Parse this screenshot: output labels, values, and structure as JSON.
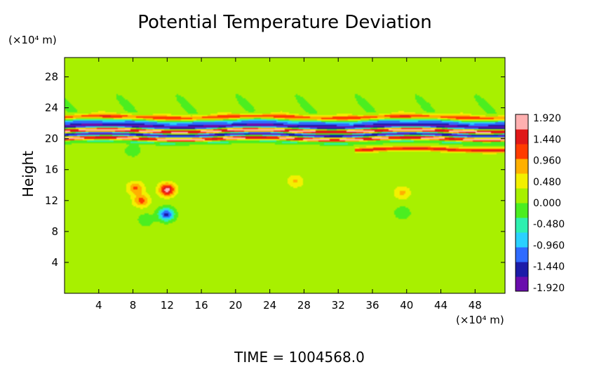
{
  "chart_data": {
    "type": "heatmap",
    "title": "Potential Temperature Deviation",
    "ylabel": "Height",
    "yunit": "(×10⁴ m)",
    "xunit": "(×10⁴ m)",
    "xlim": [
      0,
      51.5
    ],
    "ylim": [
      0,
      30.5
    ],
    "xticks": [
      4,
      8,
      12,
      16,
      20,
      24,
      28,
      32,
      36,
      40,
      44,
      48
    ],
    "yticks": [
      4,
      8,
      12,
      16,
      20,
      24,
      28
    ],
    "colorbar": {
      "range": [
        -2.0,
        2.0
      ],
      "labels": [
        "1.920",
        "1.440",
        "0.960",
        "0.480",
        "0.000",
        "-0.480",
        "-0.960",
        "-1.440",
        "-1.920"
      ],
      "label_values": [
        1.92,
        1.44,
        0.96,
        0.48,
        0.0,
        -0.48,
        -0.96,
        -1.44,
        -1.92
      ],
      "colors": [
        "#6a0dad",
        "#1c1ca8",
        "#2f6bff",
        "#2ad1ff",
        "#2df0b0",
        "#4bee20",
        "#a8f000",
        "#f3f000",
        "#ffb000",
        "#ff3c00",
        "#e01818",
        "#ffb0b0"
      ]
    },
    "background_value": 0.15,
    "features": [
      {
        "kind": "band",
        "y": 22.8,
        "x_from": 0,
        "x_to": 51.5,
        "value": 1.2
      },
      {
        "kind": "band",
        "y": 22.1,
        "x_from": 0,
        "x_to": 51.5,
        "value": -1.0
      },
      {
        "kind": "band",
        "y": 21.6,
        "x_from": 0,
        "x_to": 51.5,
        "value": -1.92
      },
      {
        "kind": "band",
        "y": 21.0,
        "x_from": 0,
        "x_to": 51.5,
        "value": 1.92
      },
      {
        "kind": "band",
        "y": 20.5,
        "x_from": 0,
        "x_to": 51.5,
        "value": -1.92
      },
      {
        "kind": "band",
        "y": 20.0,
        "x_from": 0,
        "x_to": 51.5,
        "value": 1.92
      },
      {
        "kind": "band",
        "y": 19.6,
        "x_from": 0,
        "x_to": 51.5,
        "value": -0.5
      },
      {
        "kind": "band",
        "y": 18.6,
        "x_from": 34,
        "x_to": 51.5,
        "value": 1.4
      },
      {
        "kind": "blob",
        "x": 12.0,
        "y": 13.4,
        "value": 1.7
      },
      {
        "kind": "blob",
        "x": 11.9,
        "y": 10.2,
        "value": -1.6
      },
      {
        "kind": "blob",
        "x": 8.3,
        "y": 13.6,
        "value": 0.9
      },
      {
        "kind": "blob",
        "x": 9.0,
        "y": 12.0,
        "value": 1.0
      },
      {
        "kind": "blob",
        "x": 9.5,
        "y": 9.5,
        "value": -0.4
      },
      {
        "kind": "blob",
        "x": 39.5,
        "y": 10.4,
        "value": -0.45
      },
      {
        "kind": "blob",
        "x": 39.5,
        "y": 13.0,
        "value": 0.6
      },
      {
        "kind": "blob",
        "x": 27.0,
        "y": 14.5,
        "value": 0.55
      },
      {
        "kind": "blob",
        "x": 8.0,
        "y": 18.5,
        "value": -0.45
      }
    ]
  },
  "footer": {
    "time_label": "TIME  =  1004568.0"
  }
}
